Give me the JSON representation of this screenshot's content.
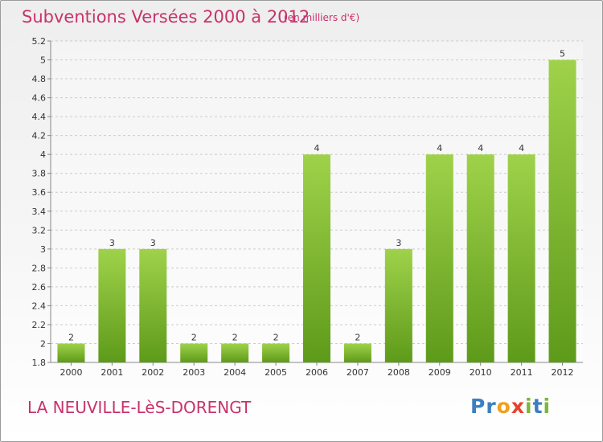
{
  "header": {
    "title": "Subventions Versées 2000 à 2012",
    "subtitle": "(en milliers d'€)"
  },
  "footer": {
    "commune": "LA NEUVILLE-LèS-DORENGT",
    "logo_letters": [
      "P",
      "r",
      "o",
      "x",
      "i",
      "t",
      "i"
    ],
    "logo_colors": [
      "#3a7fc1",
      "#3a7fc1",
      "#f0a020",
      "#e8412a",
      "#7bb83a",
      "#3a7fc1",
      "#7bb83a"
    ]
  },
  "chart_data": {
    "type": "bar",
    "categories": [
      "2000",
      "2001",
      "2002",
      "2003",
      "2004",
      "2005",
      "2006",
      "2007",
      "2008",
      "2009",
      "2010",
      "2011",
      "2012"
    ],
    "values": [
      2,
      3,
      3,
      2,
      2,
      2,
      4,
      2,
      3,
      4,
      4,
      4,
      5
    ],
    "value_labels": [
      "2",
      "3",
      "3",
      "2",
      "2",
      "2",
      "4",
      "2",
      "3",
      "4",
      "4",
      "4",
      "5"
    ],
    "y_ticks": [
      "1.8",
      "2",
      "2.2",
      "2.4",
      "2.6",
      "2.8",
      "3",
      "3.2",
      "3.4",
      "3.6",
      "3.8",
      "4",
      "4.2",
      "4.4",
      "4.6",
      "4.8",
      "5",
      "5.2"
    ],
    "ylim": [
      1.8,
      5.2
    ],
    "grid": true,
    "colors": {
      "bar_light": "#9fd24a",
      "bar_dark": "#5e9a1a",
      "grid": "#cccccc"
    }
  }
}
